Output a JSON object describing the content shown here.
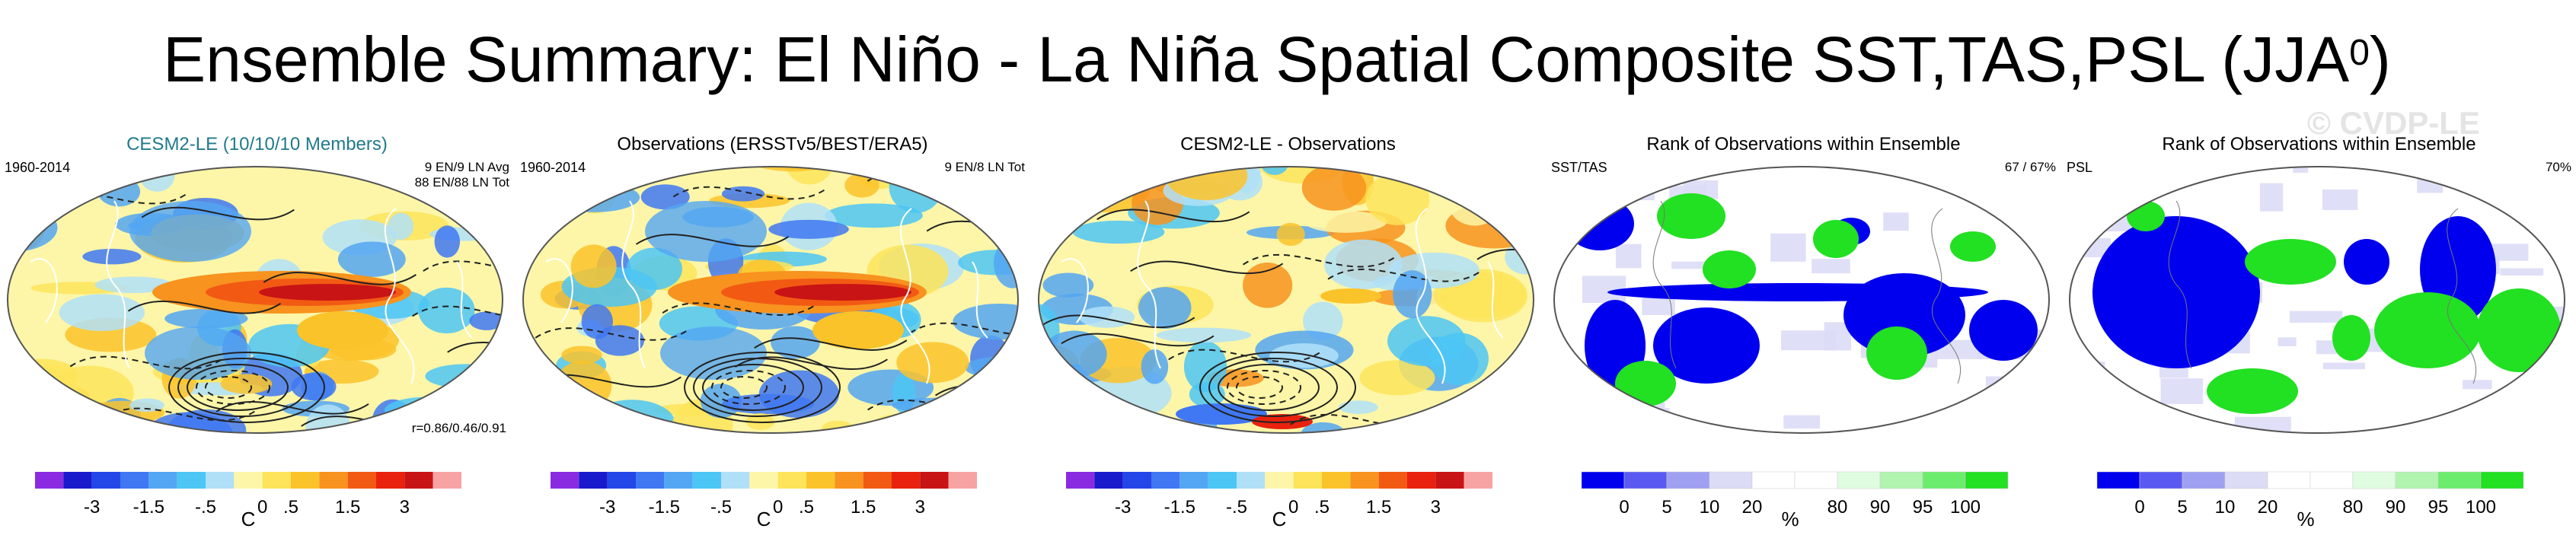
{
  "title": {
    "main": "Ensemble Summary: El Niño - La Niña Spatial Composite SST,TAS,PSL (JJA",
    "superscript": "0",
    "close": ")"
  },
  "watermark": "© CVDP-LE",
  "panels": [
    {
      "title": "CESM2-LE (10/10/10 Members)",
      "title_color": "#1f7a8c",
      "left_label": "1960-2014",
      "right_labels": [
        "9 EN/9 LN Avg",
        "88 EN/88 LN Tot"
      ],
      "corr_label": "r=0.86/0.46/0.91",
      "kind": "anomaly"
    },
    {
      "title": "Observations (ERSSTv5/BEST/ERA5)",
      "title_color": "#000000",
      "left_label": "1960-2014",
      "right_labels": [
        "9 EN/8 LN Tot"
      ],
      "corr_label": "",
      "kind": "anomaly"
    },
    {
      "title": "CESM2-LE - Observations",
      "title_color": "#000000",
      "left_label": "",
      "right_labels": [],
      "corr_label": "",
      "kind": "difference"
    },
    {
      "title": "Rank of Observations within Ensemble",
      "title_color": "#000000",
      "left_label": "SST/TAS",
      "right_labels": [
        "67 /  67%"
      ],
      "corr_label": "",
      "kind": "rank_sst"
    },
    {
      "title": "Rank of Observations within Ensemble",
      "title_color": "#000000",
      "left_label": "PSL",
      "right_labels": [
        "70%"
      ],
      "corr_label": "",
      "kind": "rank_psl"
    }
  ],
  "chart_data": [
    {
      "type": "heatmap",
      "title": "CESM2-LE (10/10/10 Members)",
      "period": "1960-2014",
      "composite_counts": [
        "9 EN/9 LN Avg",
        "88 EN/88 LN Tot"
      ],
      "pattern_correlation": "r=0.86/0.46/0.91",
      "colorbar": {
        "unit": "C",
        "tick_labels": [
          "-3",
          "-1.5",
          "-.5",
          "0",
          ".5",
          "1.5",
          "3"
        ],
        "colors": [
          "#8a2be2",
          "#1a1acd",
          "#2346e8",
          "#3f78f2",
          "#53a6f2",
          "#4cc6f5",
          "#b0e0f8",
          "#fdf6a8",
          "#fde45a",
          "#fbc32a",
          "#f7931e",
          "#f25a14",
          "#e8220e",
          "#c81414",
          "#f7a3a3"
        ]
      },
      "features": [
        "strong warm anomaly in eastern equatorial Pacific",
        "negative PSL contours (dashed) over South Pacific"
      ]
    },
    {
      "type": "heatmap",
      "title": "Observations (ERSSTv5/BEST/ERA5)",
      "period": "1960-2014",
      "composite_counts": [
        "9 EN/8 LN Tot"
      ],
      "colorbar": {
        "unit": "C",
        "tick_labels": [
          "-3",
          "-1.5",
          "-.5",
          "0",
          ".5",
          "1.5",
          "3"
        ]
      }
    },
    {
      "type": "heatmap",
      "title": "CESM2-LE - Observations",
      "colorbar": {
        "unit": "C",
        "tick_labels": [
          "-3",
          "-1.5",
          "-.5",
          "0",
          ".5",
          "1.5",
          "3"
        ]
      }
    },
    {
      "type": "heatmap",
      "title": "Rank of Observations within Ensemble",
      "variable": "SST/TAS",
      "percent_label": "67 /  67%",
      "colorbar": {
        "unit": "%",
        "tick_labels": [
          "0",
          "5",
          "10",
          "20",
          "80",
          "90",
          "95",
          "100"
        ],
        "colors": [
          "#0000ee",
          "#5a5af2",
          "#a0a0f2",
          "#dcdcf6",
          "#ffffff",
          "#ffffff",
          "#e0fce0",
          "#b0f4b0",
          "#6cec6c",
          "#22e022"
        ]
      }
    },
    {
      "type": "heatmap",
      "title": "Rank of Observations within Ensemble",
      "variable": "PSL",
      "percent_label": "70%",
      "colorbar": {
        "unit": "%",
        "tick_labels": [
          "0",
          "5",
          "10",
          "20",
          "80",
          "90",
          "95",
          "100"
        ]
      }
    }
  ]
}
